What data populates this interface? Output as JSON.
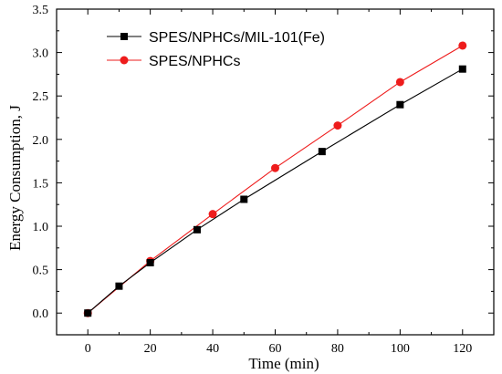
{
  "chart_data": {
    "type": "line",
    "title": "",
    "xlabel": "Time (min)",
    "ylabel": "Energy Consumption, J",
    "xlim": [
      -10,
      130
    ],
    "ylim": [
      -0.25,
      3.5
    ],
    "xticks": [
      0,
      20,
      40,
      60,
      80,
      100,
      120
    ],
    "yticks": [
      0.0,
      0.5,
      1.0,
      1.5,
      2.0,
      2.5,
      3.0,
      3.5
    ],
    "xtick_labels": [
      "0",
      "20",
      "40",
      "60",
      "80",
      "100",
      "120"
    ],
    "ytick_labels": [
      "0.0",
      "0.5",
      "1.0",
      "1.5",
      "2.0",
      "2.5",
      "3.0",
      "3.5"
    ],
    "grid": false,
    "legend_position": "top-left",
    "series": [
      {
        "name": "SPES/NPHCs/MIL-101(Fe)",
        "color": "#000000",
        "marker": "square",
        "x": [
          0,
          10,
          20,
          35,
          50,
          75,
          100,
          120
        ],
        "y": [
          0.0,
          0.31,
          0.58,
          0.96,
          1.31,
          1.86,
          2.4,
          2.81
        ]
      },
      {
        "name": "SPES/NPHCs",
        "color": "#ee1c1c",
        "marker": "circle",
        "x": [
          0,
          20,
          40,
          60,
          80,
          100,
          120
        ],
        "y": [
          0.0,
          0.6,
          1.14,
          1.67,
          2.16,
          2.66,
          3.08
        ]
      }
    ]
  }
}
